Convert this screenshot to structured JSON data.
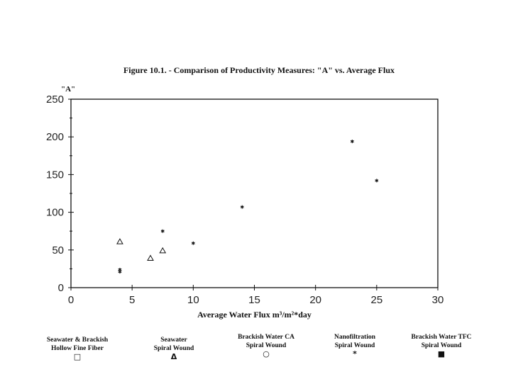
{
  "chart_data": {
    "type": "scatter",
    "title": "Figure 10.1. - Comparison of Productivity Measures: \"A\" vs. Average Flux",
    "xlabel": "Average Water Flux m³/m²*day",
    "ylabel": "\"A\"",
    "xlim": [
      0,
      30
    ],
    "ylim": [
      0,
      250
    ],
    "xticks": [
      0,
      5,
      10,
      15,
      20,
      25,
      30
    ],
    "yticks": [
      0,
      50,
      100,
      150,
      200,
      250
    ],
    "grid": false,
    "legend_position": "bottom",
    "series": [
      {
        "name": "Seawater & Brackish Hollow Fine Fiber",
        "line1": "Seawater & Brackish",
        "line2": "Hollow Fine Fiber",
        "symbol": "□",
        "points": []
      },
      {
        "name": "Seawater Spiral Wound",
        "line1": "Seawater",
        "line2": "Spiral Wound",
        "symbol": "Δ",
        "points": [
          [
            4,
            61
          ],
          [
            6.5,
            39
          ],
          [
            7.5,
            49
          ]
        ]
      },
      {
        "name": "Brackish Water CA Spiral Wound",
        "line1": "Brackish Water CA",
        "line2": "Spiral Wound",
        "symbol": "○",
        "points": []
      },
      {
        "name": "Nanofiltration Spiral Wound",
        "line1": "Nanofiltration",
        "line2": "Spiral Wound",
        "symbol": "*",
        "points": [
          [
            4,
            21
          ],
          [
            4,
            24
          ],
          [
            7.5,
            75
          ],
          [
            10,
            59
          ],
          [
            14,
            107
          ],
          [
            23,
            194
          ],
          [
            25,
            142
          ]
        ]
      },
      {
        "name": "Brackish Water TFC Spiral Wound",
        "line1": "Brackish Water TFC",
        "line2": "Spiral Wound",
        "symbol": "■",
        "points": []
      }
    ]
  }
}
